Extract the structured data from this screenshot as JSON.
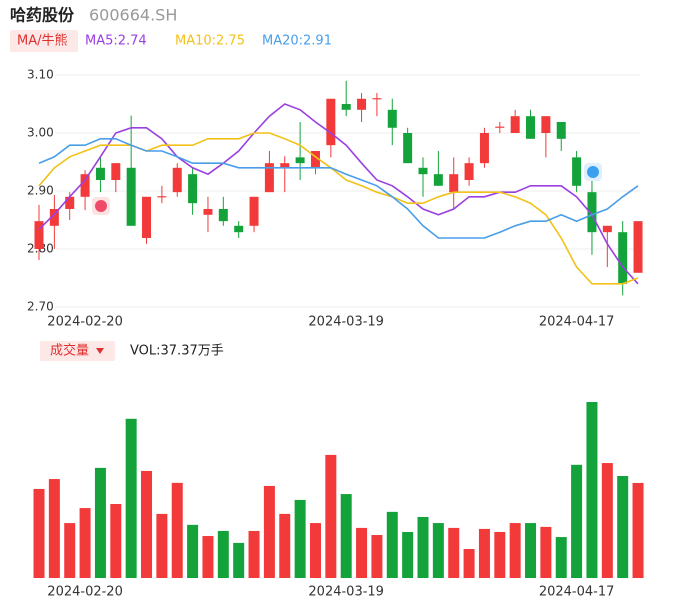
{
  "header": {
    "name": "哈药股份",
    "code": "600664.SH"
  },
  "chart_data": [
    {
      "type": "candlestick",
      "legend_button": "MA/牛熊",
      "up_color": "#f23a3a",
      "down_color": "#13a33a",
      "categories": [
        null,
        null,
        null,
        "2024-02-20",
        null,
        null,
        null,
        null,
        null,
        null,
        null,
        null,
        null,
        null,
        null,
        null,
        null,
        null,
        null,
        null,
        "2024-03-19",
        null,
        null,
        null,
        null,
        null,
        null,
        null,
        null,
        null,
        null,
        null,
        null,
        null,
        null,
        "2024-04-17",
        null,
        null,
        null,
        null
      ],
      "open": [
        2.8,
        2.84,
        2.869,
        2.89,
        2.94,
        2.919,
        2.94,
        2.819,
        2.889,
        2.898,
        2.929,
        2.859,
        2.869,
        2.84,
        2.84,
        2.898,
        2.94,
        2.958,
        2.94,
        2.979,
        3.05,
        3.04,
        3.058,
        3.04,
        3.0,
        2.94,
        2.929,
        2.898,
        2.919,
        2.948,
        3.009,
        3.0,
        3.029,
        3.0,
        3.019,
        2.958,
        2.898,
        2.829,
        2.829,
        2.759
      ],
      "high": [
        2.876,
        2.893,
        2.898,
        2.936,
        2.96,
        2.948,
        3.03,
        2.89,
        2.909,
        2.948,
        2.94,
        2.89,
        2.89,
        2.848,
        2.89,
        2.969,
        2.96,
        3.019,
        2.969,
        3.059,
        3.09,
        3.069,
        3.069,
        3.059,
        3.009,
        2.958,
        2.969,
        2.958,
        2.958,
        3.009,
        3.019,
        3.04,
        3.04,
        3.029,
        3.019,
        2.969,
        2.919,
        2.84,
        2.848,
        2.848
      ],
      "low": [
        2.781,
        2.8,
        2.85,
        2.867,
        2.898,
        2.898,
        2.84,
        2.809,
        2.879,
        2.89,
        2.859,
        2.829,
        2.84,
        2.819,
        2.829,
        2.898,
        2.898,
        2.919,
        2.929,
        2.958,
        3.029,
        3.019,
        3.029,
        2.979,
        2.948,
        2.89,
        2.909,
        2.869,
        2.909,
        2.94,
        3.0,
        3.0,
        2.99,
        2.958,
        2.969,
        2.898,
        2.79,
        2.769,
        2.72,
        2.759
      ],
      "close": [
        2.848,
        2.869,
        2.89,
        2.929,
        2.919,
        2.948,
        2.84,
        2.89,
        2.891,
        2.94,
        2.879,
        2.869,
        2.848,
        2.829,
        2.89,
        2.948,
        2.948,
        2.948,
        2.969,
        3.059,
        3.04,
        3.059,
        3.06,
        3.009,
        2.948,
        2.929,
        2.909,
        2.929,
        2.948,
        3.0,
        3.011,
        3.029,
        2.99,
        3.029,
        2.99,
        2.909,
        2.829,
        2.84,
        2.74,
        2.848
      ],
      "series": [
        {
          "name": "MA5:2.74",
          "color": "#9b40e0",
          "values": [
            2.834,
            2.86,
            2.89,
            2.919,
            2.959,
            3.0,
            3.009,
            3.009,
            2.99,
            2.959,
            2.94,
            2.929,
            2.948,
            2.969,
            3.0,
            3.029,
            3.05,
            3.04,
            3.019,
            3.0,
            2.979,
            2.948,
            2.919,
            2.909,
            2.89,
            2.869,
            2.859,
            2.869,
            2.89,
            2.89,
            2.898,
            2.898,
            2.909,
            2.909,
            2.909,
            2.89,
            2.859,
            2.809,
            2.769,
            2.74
          ]
        },
        {
          "name": "MA10:2.75",
          "color": "#f2c21a",
          "values": [
            2.909,
            2.94,
            2.959,
            2.969,
            2.979,
            2.979,
            2.979,
            2.969,
            2.979,
            2.979,
            2.979,
            2.99,
            2.99,
            2.99,
            3.0,
            3.0,
            2.99,
            2.979,
            2.959,
            2.94,
            2.919,
            2.909,
            2.898,
            2.89,
            2.879,
            2.879,
            2.89,
            2.898,
            2.898,
            2.898,
            2.898,
            2.89,
            2.879,
            2.859,
            2.819,
            2.769,
            2.74,
            2.74,
            2.74,
            2.75
          ]
        },
        {
          "name": "MA20:2.91",
          "color": "#4a9ee8",
          "values": [
            2.948,
            2.959,
            2.979,
            2.979,
            2.99,
            2.99,
            2.979,
            2.969,
            2.969,
            2.959,
            2.948,
            2.948,
            2.948,
            2.94,
            2.94,
            2.94,
            2.94,
            2.94,
            2.94,
            2.94,
            2.929,
            2.919,
            2.909,
            2.89,
            2.869,
            2.84,
            2.819,
            2.819,
            2.819,
            2.819,
            2.829,
            2.84,
            2.848,
            2.848,
            2.859,
            2.848,
            2.859,
            2.869,
            2.89,
            2.909
          ]
        }
      ],
      "ylim": [
        2.7,
        3.1
      ],
      "yticks": [
        {
          "value": 3.1,
          "label": "3.10"
        },
        {
          "value": 3.0,
          "label": "3.00"
        },
        {
          "value": 2.9,
          "label": "2.90"
        },
        {
          "value": 2.8,
          "label": "2.80"
        },
        {
          "value": 2.7,
          "label": "2.70"
        }
      ],
      "grid": true
    },
    {
      "type": "bar",
      "legend_button": "成交量",
      "label": "VOL:37.37万手",
      "categories": [
        null,
        null,
        null,
        "2024-02-20",
        null,
        null,
        null,
        null,
        null,
        null,
        null,
        null,
        null,
        null,
        null,
        null,
        null,
        null,
        null,
        null,
        "2024-03-19",
        null,
        null,
        null,
        null,
        null,
        null,
        null,
        null,
        null,
        null,
        null,
        null,
        null,
        null,
        "2024-04-17",
        null,
        null,
        null,
        null
      ],
      "values": [
        35.0,
        38.9,
        21.6,
        27.5,
        43.3,
        29.1,
        62.6,
        42.1,
        25.2,
        37.4,
        20.9,
        16.5,
        18.5,
        13.8,
        18.5,
        36.2,
        25.2,
        30.7,
        21.6,
        48.4,
        33.0,
        19.7,
        16.9,
        26.0,
        18.1,
        24.0,
        21.6,
        19.7,
        11.4,
        19.3,
        18.1,
        21.6,
        21.6,
        20.1,
        16.1,
        44.5,
        69.2,
        45.2,
        40.1,
        37.37
      ]
    }
  ]
}
